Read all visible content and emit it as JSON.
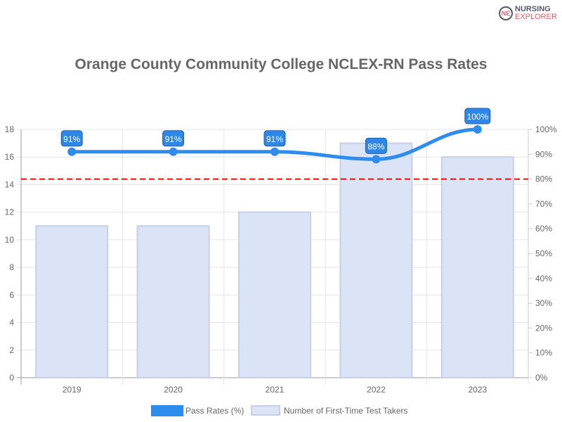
{
  "logo": {
    "line1": "NURSING",
    "line2": "EXPLORER",
    "mark": "NE"
  },
  "chart_data": {
    "type": "bar+line",
    "title": "Orange County Community College NCLEX-RN Pass Rates",
    "categories": [
      "2019",
      "2020",
      "2021",
      "2022",
      "2023"
    ],
    "series": [
      {
        "name": "Pass Rates (%)",
        "type": "line",
        "axis": "right",
        "values": [
          91,
          91,
          91,
          88,
          100
        ],
        "color": "#2e8cef",
        "labels": [
          "91%",
          "91%",
          "91%",
          "88%",
          "100%"
        ]
      },
      {
        "name": "Number of First-Time Test Takers",
        "type": "bar",
        "axis": "left",
        "values": [
          11,
          11,
          12,
          17,
          16
        ],
        "color": "#dbe3f7"
      }
    ],
    "left_axis": {
      "ylim": [
        0,
        18
      ],
      "ticks": [
        "0",
        "2",
        "4",
        "6",
        "8",
        "10",
        "12",
        "14",
        "16",
        "18"
      ]
    },
    "right_axis": {
      "ylim": [
        0,
        100
      ],
      "ticks": [
        "0%",
        "10%",
        "20%",
        "30%",
        "40%",
        "50%",
        "60%",
        "70%",
        "80%",
        "90%",
        "100%"
      ]
    },
    "reference_line": {
      "value": 80,
      "axis": "right",
      "color": "#ff0000",
      "style": "dashed"
    },
    "grid": true,
    "legend": "bottom"
  }
}
